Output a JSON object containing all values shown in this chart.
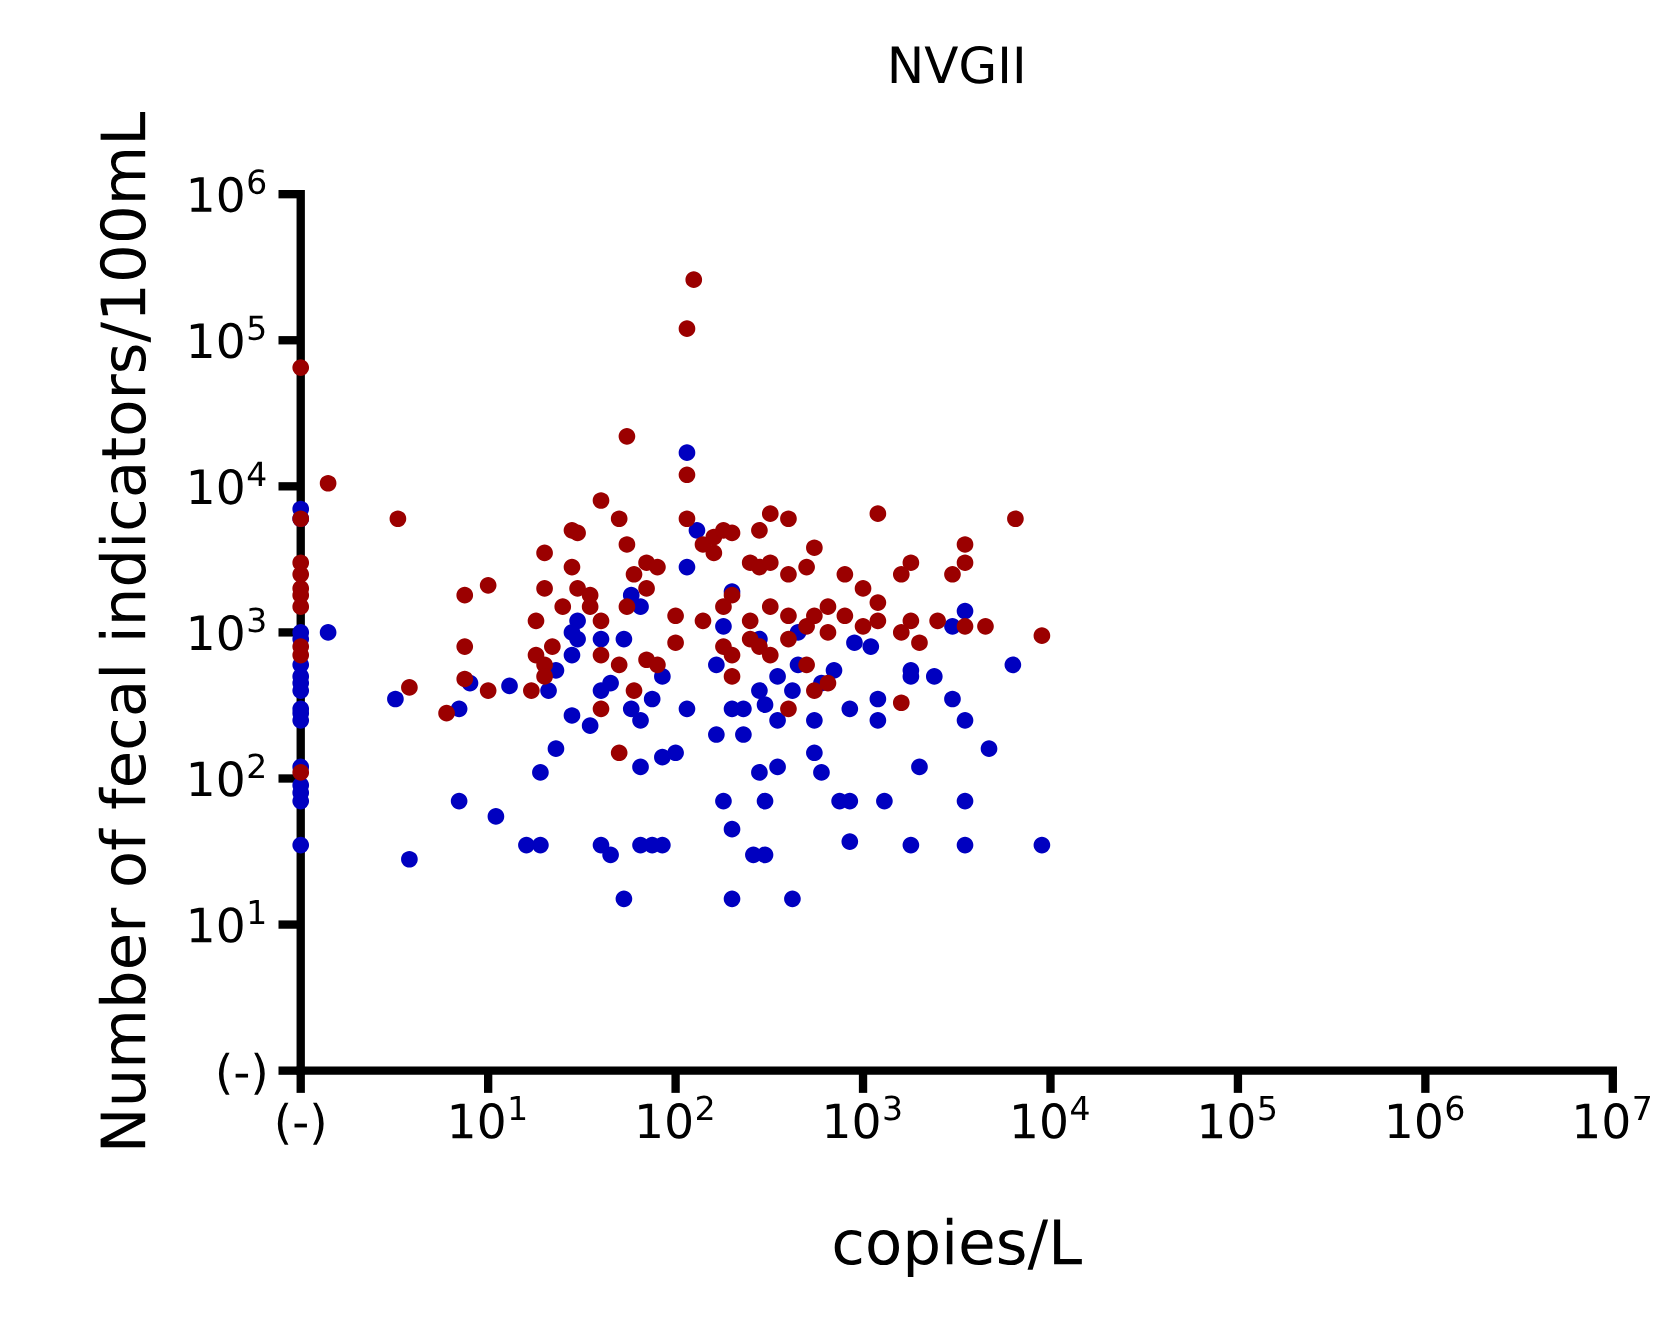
{
  "chart_data": {
    "type": "scatter",
    "title": "NVGII",
    "xlabel": "copies/L",
    "ylabel": "Number of fecal indicators/100mL",
    "log": "xy",
    "marker": "circle",
    "xlim": [
      1,
      10000000
    ],
    "ylim": [
      1,
      1000000
    ],
    "xticks": [
      {
        "value": 1,
        "label": "(-)"
      },
      {
        "value": 10,
        "label": "10$^{1}$"
      },
      {
        "value": 100,
        "label": "10$^{2}$"
      },
      {
        "value": 1000,
        "label": "10$^{3}$"
      },
      {
        "value": 10000,
        "label": "10$^{4}$"
      },
      {
        "value": 100000,
        "label": "10$^{5}$"
      },
      {
        "value": 1000000,
        "label": "10$^{6}$"
      },
      {
        "value": 10000000,
        "label": "10$^{7}$"
      }
    ],
    "yticks": [
      {
        "value": 1,
        "label": "(-)"
      },
      {
        "value": 10,
        "label": "10$^{1}$"
      },
      {
        "value": 100,
        "label": "10$^{2}$"
      },
      {
        "value": 1000,
        "label": "10$^{3}$"
      },
      {
        "value": 10000,
        "label": "10$^{4}$"
      },
      {
        "value": 100000,
        "label": "10$^{5}$"
      },
      {
        "value": 1000000,
        "label": "10$^{6}$"
      }
    ],
    "series": [
      {
        "color": "#0000c0",
        "x": [
          1,
          1,
          1,
          1,
          1,
          1,
          1,
          1,
          1,
          1,
          1,
          1,
          1,
          1,
          1,
          1,
          1.4,
          3.2,
          3.8,
          7,
          7,
          8,
          11,
          13,
          16,
          19,
          19,
          21,
          23,
          23,
          28,
          28,
          28,
          30,
          30,
          35,
          40,
          40,
          40,
          45,
          45,
          53,
          53,
          58,
          58,
          65,
          65,
          65,
          65,
          75,
          75,
          85,
          85,
          85,
          100,
          115,
          115,
          115,
          130,
          165,
          165,
          180,
          180,
          200,
          200,
          200,
          200,
          230,
          230,
          260,
          280,
          280,
          280,
          300,
          300,
          300,
          350,
          350,
          350,
          420,
          420,
          450,
          450,
          550,
          550,
          600,
          600,
          700,
          750,
          850,
          850,
          850,
          900,
          1100,
          1200,
          1200,
          1300,
          1800,
          1800,
          1800,
          2000,
          2400,
          3000,
          3000,
          3500,
          3500,
          3500,
          3500,
          4700,
          6300,
          9000
        ],
        "values": [
          7000,
          6000,
          1000,
          900,
          600,
          500,
          450,
          400,
          300,
          280,
          250,
          120,
          90,
          80,
          70,
          35,
          1000,
          350,
          28,
          70,
          300,
          450,
          55,
          430,
          35,
          110,
          35,
          400,
          160,
          550,
          1000,
          700,
          270,
          1200,
          900,
          230,
          400,
          35,
          900,
          450,
          30,
          15,
          900,
          1800,
          300,
          35,
          1500,
          250,
          120,
          35,
          350,
          500,
          140,
          35,
          150,
          17000,
          300,
          2800,
          5000,
          200,
          600,
          70,
          1100,
          15,
          1900,
          300,
          45,
          200,
          300,
          30,
          900,
          400,
          110,
          320,
          70,
          30,
          250,
          500,
          120,
          400,
          15,
          1000,
          600,
          250,
          150,
          110,
          450,
          550,
          70,
          300,
          70,
          37,
          850,
          800,
          350,
          250,
          70,
          550,
          500,
          35,
          120,
          500,
          1100,
          350,
          1400,
          250,
          70,
          35,
          160,
          600,
          35
        ]
      },
      {
        "color": "#9b0000",
        "x": [
          1,
          1,
          1,
          1,
          1,
          1,
          1,
          1,
          1,
          1,
          1.4,
          3.3,
          3.8,
          6,
          7.5,
          7.5,
          7.5,
          10,
          10,
          17,
          18,
          18,
          20,
          20,
          20,
          20,
          22,
          25,
          28,
          28,
          30,
          30,
          35,
          35,
          40,
          40,
          40,
          40,
          50,
          50,
          50,
          55,
          55,
          55,
          60,
          60,
          70,
          70,
          70,
          80,
          80,
          100,
          100,
          115,
          115,
          115,
          125,
          140,
          140,
          160,
          160,
          180,
          180,
          180,
          200,
          200,
          200,
          200,
          250,
          250,
          250,
          280,
          280,
          280,
          320,
          320,
          320,
          320,
          400,
          400,
          400,
          400,
          400,
          500,
          500,
          500,
          550,
          550,
          550,
          650,
          650,
          650,
          800,
          800,
          1000,
          1000,
          1200,
          1200,
          1200,
          1600,
          1600,
          1600,
          1800,
          1800,
          2000,
          2500,
          3000,
          3500,
          3500,
          3500,
          4500,
          6500,
          9000
        ],
        "values": [
          65000,
          6000,
          3000,
          2500,
          2000,
          1800,
          1500,
          800,
          700,
          110,
          10500,
          6000,
          420,
          280,
          1800,
          800,
          480,
          2100,
          400,
          400,
          700,
          1200,
          2000,
          3500,
          600,
          500,
          800,
          1500,
          5000,
          2800,
          4800,
          2000,
          1800,
          1500,
          8000,
          1200,
          300,
          700,
          6000,
          600,
          150,
          22000,
          4000,
          1500,
          2500,
          400,
          3000,
          650,
          2000,
          2800,
          600,
          1300,
          850,
          120000,
          12000,
          6000,
          260000,
          4000,
          1200,
          4500,
          3500,
          5000,
          1500,
          800,
          4800,
          1800,
          700,
          500,
          3000,
          1200,
          900,
          5000,
          2800,
          800,
          6500,
          3000,
          1500,
          700,
          6000,
          2500,
          1300,
          900,
          300,
          2800,
          1100,
          600,
          3800,
          1300,
          400,
          1500,
          1000,
          450,
          1300,
          2500,
          2000,
          1100,
          6500,
          1600,
          1200,
          2500,
          1000,
          330,
          3000,
          1200,
          850,
          1200,
          2500,
          4000,
          3000,
          1100,
          1100,
          6000,
          950
        ]
      }
    ]
  }
}
